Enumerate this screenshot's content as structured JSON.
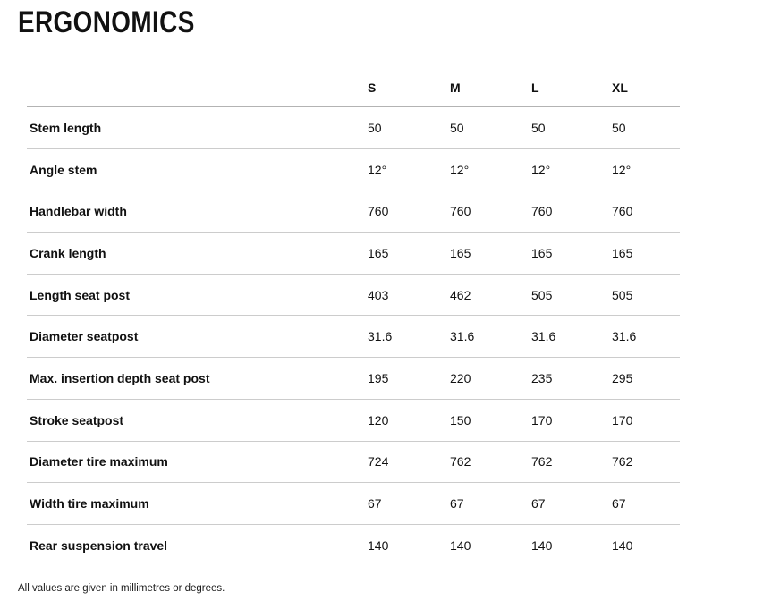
{
  "page": {
    "title": "ERGONOMICS",
    "footnote": "All values are given in millimetres or degrees."
  },
  "table": {
    "columns": [
      "S",
      "M",
      "L",
      "XL"
    ],
    "rows": [
      {
        "label": "Stem length",
        "values": [
          "50",
          "50",
          "50",
          "50"
        ]
      },
      {
        "label": "Angle stem",
        "values": [
          "12°",
          "12°",
          "12°",
          "12°"
        ]
      },
      {
        "label": "Handlebar width",
        "values": [
          "760",
          "760",
          "760",
          "760"
        ]
      },
      {
        "label": "Crank length",
        "values": [
          "165",
          "165",
          "165",
          "165"
        ]
      },
      {
        "label": "Length seat post",
        "values": [
          "403",
          "462",
          "505",
          "505"
        ]
      },
      {
        "label": "Diameter seatpost",
        "values": [
          "31.6",
          "31.6",
          "31.6",
          "31.6"
        ]
      },
      {
        "label": "Max. insertion depth seat post",
        "values": [
          "195",
          "220",
          "235",
          "295"
        ]
      },
      {
        "label": "Stroke seatpost",
        "values": [
          "120",
          "150",
          "170",
          "170"
        ]
      },
      {
        "label": "Diameter tire maximum",
        "values": [
          "724",
          "762",
          "762",
          "762"
        ]
      },
      {
        "label": "Width tire maximum",
        "values": [
          "67",
          "67",
          "67",
          "67"
        ]
      },
      {
        "label": "Rear suspension travel",
        "values": [
          "140",
          "140",
          "140",
          "140"
        ]
      }
    ]
  },
  "colors": {
    "text": "#111111",
    "header_border": "#b3b3b3",
    "row_border": "#cccccc",
    "background": "#ffffff"
  }
}
